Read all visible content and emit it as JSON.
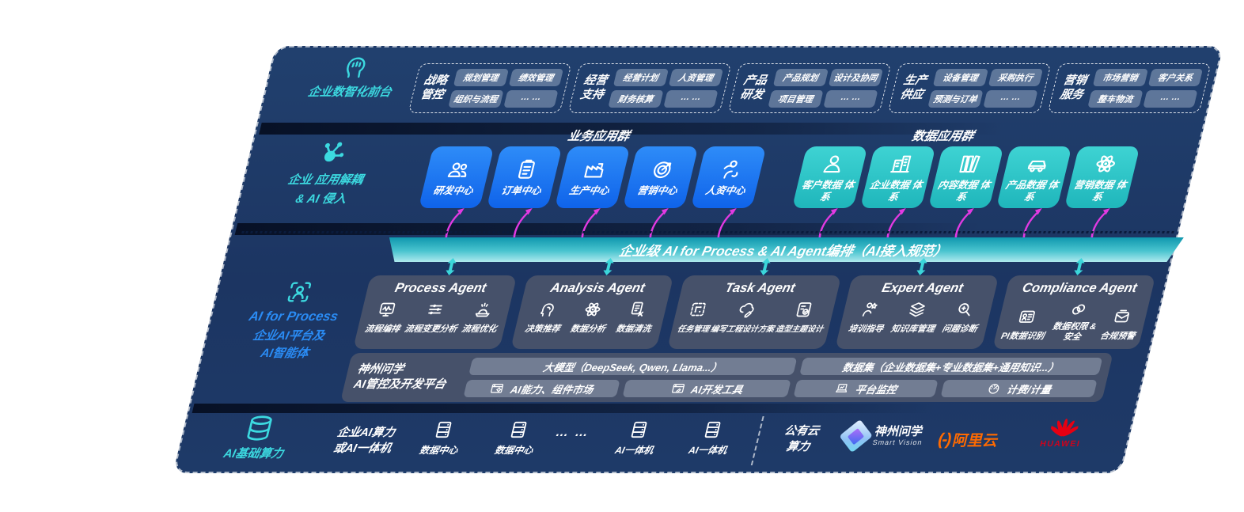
{
  "front_office": {
    "label": "企业数智化前台",
    "groups": [
      {
        "name": "战略管控",
        "items": [
          "规划管理",
          "绩效管理",
          "组织与流程",
          "… …"
        ]
      },
      {
        "name": "经营支持",
        "items": [
          "经营计划",
          "人资管理",
          "财务核算",
          "… …"
        ]
      },
      {
        "name": "产品研发",
        "items": [
          "产品规划",
          "设计及协同",
          "项目管理",
          "… …"
        ]
      },
      {
        "name": "生产供应",
        "items": [
          "设备管理",
          "采购执行",
          "预测与订单",
          "… …"
        ]
      },
      {
        "name": "营销服务",
        "items": [
          "市场营销",
          "客户关系",
          "整车物流",
          "… …"
        ]
      }
    ]
  },
  "decouple": {
    "label_line1": "企业 应用解耦",
    "label_line2": "& AI 侵入",
    "business_group": {
      "title": "业务应用群",
      "apps": [
        {
          "name": "研发中心",
          "icon": "people-icon"
        },
        {
          "name": "订单中心",
          "icon": "clipboard-icon"
        },
        {
          "name": "生产中心",
          "icon": "factory-icon"
        },
        {
          "name": "营销中心",
          "icon": "target-icon"
        },
        {
          "name": "人资中心",
          "icon": "hr-person-icon"
        }
      ]
    },
    "data_group": {
      "title": "数据应用群",
      "apps": [
        {
          "name": "客户数据 体系",
          "icon": "person-icon"
        },
        {
          "name": "企业数据 体系",
          "icon": "building-icon"
        },
        {
          "name": "内容数据 体系",
          "icon": "books-icon"
        },
        {
          "name": "产品数据 体系",
          "icon": "car-icon"
        },
        {
          "name": "营销数据 体系",
          "icon": "atom-icon"
        }
      ]
    }
  },
  "ai_layer": {
    "label_en": "AI for Process",
    "label_cn1": "企业AI平台及",
    "label_cn2": "AI智能体",
    "band_title": "企业级 AI for Process & AI Agent编排（AI接入规范）",
    "agents": [
      {
        "title": "Process Agent",
        "items": [
          {
            "label": "流程编排",
            "icon": "monitor-wave-icon"
          },
          {
            "label": "流程变更分析",
            "icon": "sliders-icon"
          },
          {
            "label": "流程优化",
            "icon": "podium-icon"
          }
        ]
      },
      {
        "title": "Analysis Agent",
        "items": [
          {
            "label": "决策推荐",
            "icon": "head-idea-icon"
          },
          {
            "label": "数据分析",
            "icon": "atom-icon"
          },
          {
            "label": "数据清洗",
            "icon": "doc-clean-icon"
          }
        ]
      },
      {
        "title": "Task Agent",
        "items": [
          {
            "label": "任务管理",
            "icon": "grid-task-icon"
          },
          {
            "label": "编写工程设计方案",
            "icon": "cloud-pen-icon"
          },
          {
            "label": "造型主题设计",
            "icon": "theme-card-icon"
          }
        ]
      },
      {
        "title": "Expert Agent",
        "items": [
          {
            "label": "培训指导",
            "icon": "coach-star-icon"
          },
          {
            "label": "知识库管理",
            "icon": "layers-icon"
          },
          {
            "label": "问题诊断",
            "icon": "diagnose-icon"
          }
        ]
      },
      {
        "title": "Compliance Agent",
        "items": [
          {
            "label": "PI数据识别",
            "icon": "id-card-icon"
          },
          {
            "label": "数据权限 & 安全",
            "icon": "link-rings-icon"
          },
          {
            "label": "合规预警",
            "icon": "mail-alert-icon"
          }
        ]
      }
    ],
    "platform": {
      "label_line1": "神州问学",
      "label_line2": "AI管控及开发平台",
      "model_bar": "大模型（DeepSeek, Qwen, Llama...）",
      "dataset_bar": "数据集（企业数据集+专业数据集+通用知识...）",
      "tools": [
        {
          "label": "AI能力、组件市场",
          "icon": "window-gear-icon"
        },
        {
          "label": "AI开发工具",
          "icon": "window-pen-icon"
        },
        {
          "label": "平台监控",
          "icon": "laptop-chart-icon"
        },
        {
          "label": "计费/计量",
          "icon": "gauge-icon"
        }
      ]
    }
  },
  "infra": {
    "label": "AI基础算力",
    "compute_line1": "企业AI算力",
    "compute_line2": "或AI一体机",
    "nodes": [
      {
        "label": "数据中心",
        "icon": "server-icon"
      },
      {
        "label": "数据中心",
        "icon": "server-icon"
      },
      {
        "label": "AI一体机",
        "icon": "server-icon"
      },
      {
        "label": "AI一体机",
        "icon": "server-icon"
      }
    ],
    "dots": "… …",
    "cloud_line1": "公有云",
    "cloud_line2": "算力",
    "logos": {
      "shenzhou_name": "神州问学",
      "shenzhou_sub": "Smart Vision",
      "alibaba_mark": "(-)",
      "alibaba": "阿里云",
      "huawei": "HUAWEI"
    }
  },
  "colors": {
    "panel_navy": "#1d3765",
    "accent_teal": "#3cd9e0",
    "accent_blue": "#2a8cf5",
    "blue_box": "#146ff2",
    "teal_box": "#2cc4c6",
    "magenta_arrow": "#e23ae2",
    "band_teal": "#18a6b8",
    "bar_gray": "rgba(198,210,228,0.36)",
    "alibaba_orange": "#ff6a00",
    "huawei_red": "#e60012"
  }
}
